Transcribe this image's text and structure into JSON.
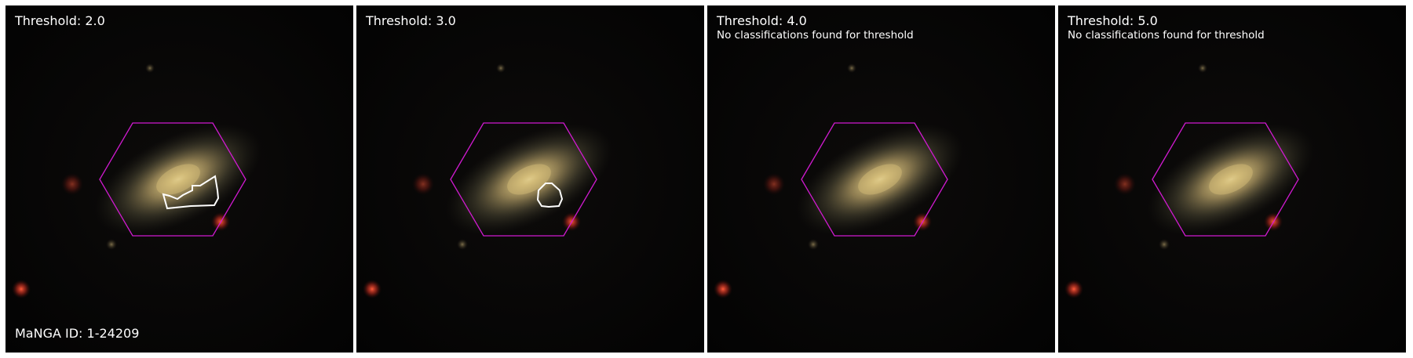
{
  "figure": {
    "manga_id_label": "MaNGA ID: 1-24209",
    "panels": [
      {
        "title": "Threshold: 2.0",
        "note": "",
        "has_contour": true
      },
      {
        "title": "Threshold: 3.0",
        "note": "",
        "has_contour": true
      },
      {
        "title": "Threshold: 4.0",
        "note": "No classifications found for threshold",
        "has_contour": false
      },
      {
        "title": "Threshold: 5.0",
        "note": "No classifications found for threshold",
        "has_contour": false
      }
    ]
  },
  "colors": {
    "background": "#ffffff",
    "panel_background": "#020202",
    "hexagon": "#d01ad0",
    "contour": "#ffffff",
    "galaxy_core": "#e8d08a"
  }
}
